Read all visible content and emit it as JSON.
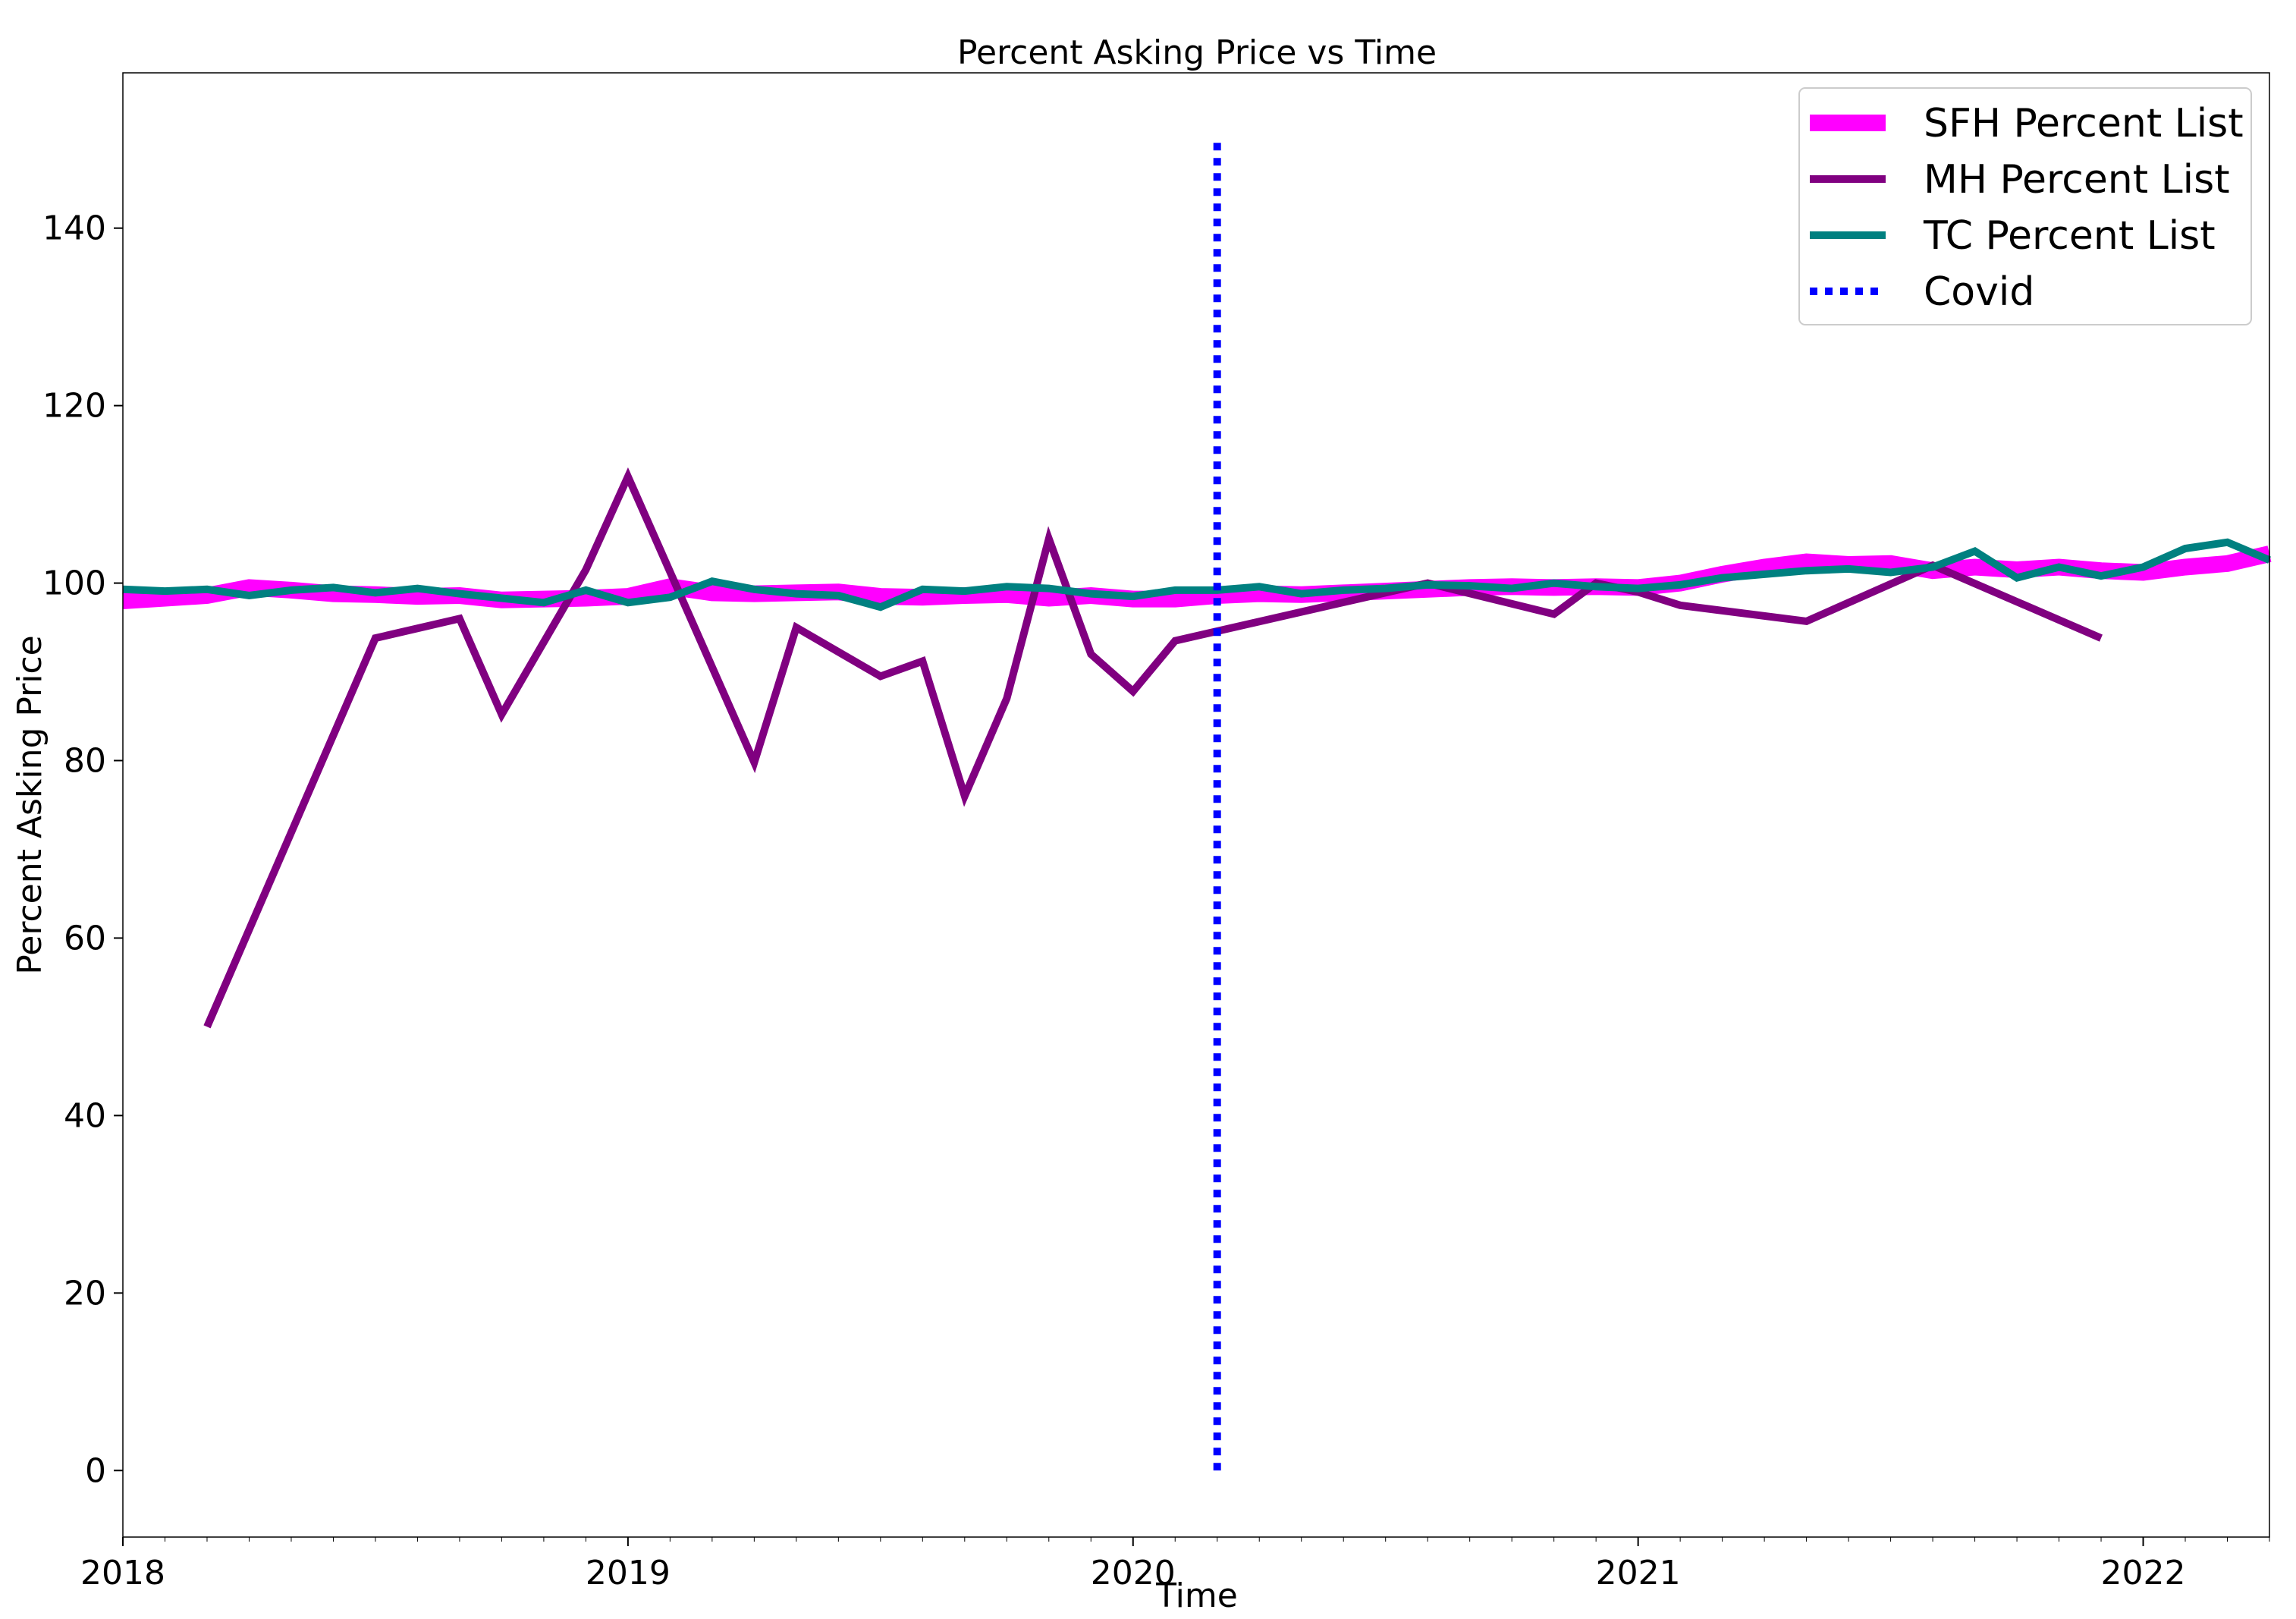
{
  "chart_data": {
    "type": "line",
    "title": "Percent Asking Price vs Time",
    "xlabel": "Time",
    "ylabel": "Percent Asking Price",
    "x_ticks": [
      "2018",
      "2019",
      "2020",
      "2021",
      "2022"
    ],
    "y_ticks": [
      "0",
      "20",
      "40",
      "60",
      "80",
      "100",
      "120",
      "140"
    ],
    "xlim": [
      "2018-01",
      "2022-04"
    ],
    "ylim": [
      -7.5,
      157.5
    ],
    "grid": false,
    "legend_position": "top-right",
    "series": [
      {
        "name": "SFH Percent List",
        "color": "#ff00ff",
        "style": "thick-solid",
        "points": [
          [
            "2018-01",
            98
          ],
          [
            "2018-02",
            98.3
          ],
          [
            "2018-03",
            98.6
          ],
          [
            "2018-04",
            99.5
          ],
          [
            "2018-05",
            99.2
          ],
          [
            "2018-06",
            98.8
          ],
          [
            "2018-07",
            98.7
          ],
          [
            "2018-08",
            98.5
          ],
          [
            "2018-09",
            98.6
          ],
          [
            "2018-10",
            98.1
          ],
          [
            "2018-11",
            98.2
          ],
          [
            "2018-12",
            98.3
          ],
          [
            "2019-01",
            98.5
          ],
          [
            "2019-02",
            99.6
          ],
          [
            "2019-03",
            98.9
          ],
          [
            "2019-04",
            98.8
          ],
          [
            "2019-05",
            98.9
          ],
          [
            "2019-06",
            99.0
          ],
          [
            "2019-07",
            98.5
          ],
          [
            "2019-08",
            98.4
          ],
          [
            "2019-09",
            98.6
          ],
          [
            "2019-10",
            98.7
          ],
          [
            "2019-11",
            98.3
          ],
          [
            "2019-12",
            98.6
          ],
          [
            "2020-01",
            98.2
          ],
          [
            "2020-02",
            98.2
          ],
          [
            "2020-03",
            98.6
          ],
          [
            "2020-04",
            98.8
          ],
          [
            "2020-05",
            98.7
          ],
          [
            "2020-06",
            98.9
          ],
          [
            "2020-07",
            99.1
          ],
          [
            "2020-08",
            99.3
          ],
          [
            "2020-09",
            99.5
          ],
          [
            "2020-10",
            99.6
          ],
          [
            "2020-11",
            99.5
          ],
          [
            "2020-12",
            99.6
          ],
          [
            "2021-01",
            99.5
          ],
          [
            "2021-02",
            100.0
          ],
          [
            "2021-03",
            101.0
          ],
          [
            "2021-04",
            101.8
          ],
          [
            "2021-05",
            102.4
          ],
          [
            "2021-06",
            102.1
          ],
          [
            "2021-07",
            102.2
          ],
          [
            "2021-08",
            101.4
          ],
          [
            "2021-09",
            101.8
          ],
          [
            "2021-10",
            101.5
          ],
          [
            "2021-11",
            101.8
          ],
          [
            "2021-12",
            101.4
          ],
          [
            "2022-01",
            101.2
          ],
          [
            "2022-02",
            101.8
          ],
          [
            "2022-03",
            102.2
          ],
          [
            "2022-04",
            103.3
          ]
        ]
      },
      {
        "name": "MH Percent List",
        "color": "#800080",
        "style": "solid",
        "points": [
          [
            "2018-03",
            50
          ],
          [
            "2018-07",
            93.8
          ],
          [
            "2018-09",
            96
          ],
          [
            "2018-10",
            85.2
          ],
          [
            "2018-12",
            101.5
          ],
          [
            "2019-01",
            112
          ],
          [
            "2019-04",
            79.8
          ],
          [
            "2019-05",
            95
          ],
          [
            "2019-07",
            89.5
          ],
          [
            "2019-08",
            91.2
          ],
          [
            "2019-09",
            76
          ],
          [
            "2019-10",
            87
          ],
          [
            "2019-11",
            105
          ],
          [
            "2019-12",
            92
          ],
          [
            "2020-01",
            87.8
          ],
          [
            "2020-02",
            93.5
          ],
          [
            "2020-08",
            100
          ],
          [
            "2020-11",
            96.5
          ],
          [
            "2020-12",
            100
          ],
          [
            "2021-01",
            99
          ],
          [
            "2021-02",
            97.5
          ],
          [
            "2021-05",
            95.7
          ],
          [
            "2021-08",
            102
          ],
          [
            "2021-12",
            93.8
          ]
        ]
      },
      {
        "name": "TC Percent List",
        "color": "#008080",
        "style": "solid",
        "points": [
          [
            "2018-01",
            99.3
          ],
          [
            "2018-02",
            99.1
          ],
          [
            "2018-03",
            99.3
          ],
          [
            "2018-04",
            98.6
          ],
          [
            "2018-05",
            99.2
          ],
          [
            "2018-06",
            99.5
          ],
          [
            "2018-07",
            98.9
          ],
          [
            "2018-08",
            99.4
          ],
          [
            "2018-09",
            98.8
          ],
          [
            "2018-10",
            98.3
          ],
          [
            "2018-11",
            97.8
          ],
          [
            "2018-12",
            99.2
          ],
          [
            "2019-01",
            97.8
          ],
          [
            "2019-02",
            98.4
          ],
          [
            "2019-03",
            100.2
          ],
          [
            "2019-04",
            99.3
          ],
          [
            "2019-05",
            98.8
          ],
          [
            "2019-06",
            98.6
          ],
          [
            "2019-07",
            97.3
          ],
          [
            "2019-08",
            99.3
          ],
          [
            "2019-09",
            99.1
          ],
          [
            "2019-10",
            99.6
          ],
          [
            "2019-11",
            99.4
          ],
          [
            "2019-12",
            98.8
          ],
          [
            "2020-01",
            98.5
          ],
          [
            "2020-02",
            99.2
          ],
          [
            "2020-03",
            99.2
          ],
          [
            "2020-04",
            99.6
          ],
          [
            "2020-05",
            98.8
          ],
          [
            "2020-06",
            99.2
          ],
          [
            "2020-07",
            99.4
          ],
          [
            "2020-08",
            99.8
          ],
          [
            "2020-09",
            99.7
          ],
          [
            "2020-10",
            99.4
          ],
          [
            "2020-11",
            100.0
          ],
          [
            "2020-12",
            99.6
          ],
          [
            "2021-01",
            99.4
          ],
          [
            "2021-02",
            99.8
          ],
          [
            "2021-03",
            100.6
          ],
          [
            "2021-04",
            101.0
          ],
          [
            "2021-05",
            101.4
          ],
          [
            "2021-06",
            101.6
          ],
          [
            "2021-07",
            101.2
          ],
          [
            "2021-08",
            101.8
          ],
          [
            "2021-09",
            103.6
          ],
          [
            "2021-10",
            100.6
          ],
          [
            "2021-11",
            101.8
          ],
          [
            "2021-12",
            100.8
          ],
          [
            "2022-01",
            101.8
          ],
          [
            "2022-02",
            103.9
          ],
          [
            "2022-03",
            104.6
          ],
          [
            "2022-04",
            102.6
          ]
        ]
      },
      {
        "name": "Covid",
        "color": "#0000ff",
        "style": "dotted",
        "points": [
          [
            "2020-03",
            0
          ],
          [
            "2020-03",
            150
          ]
        ]
      }
    ]
  }
}
